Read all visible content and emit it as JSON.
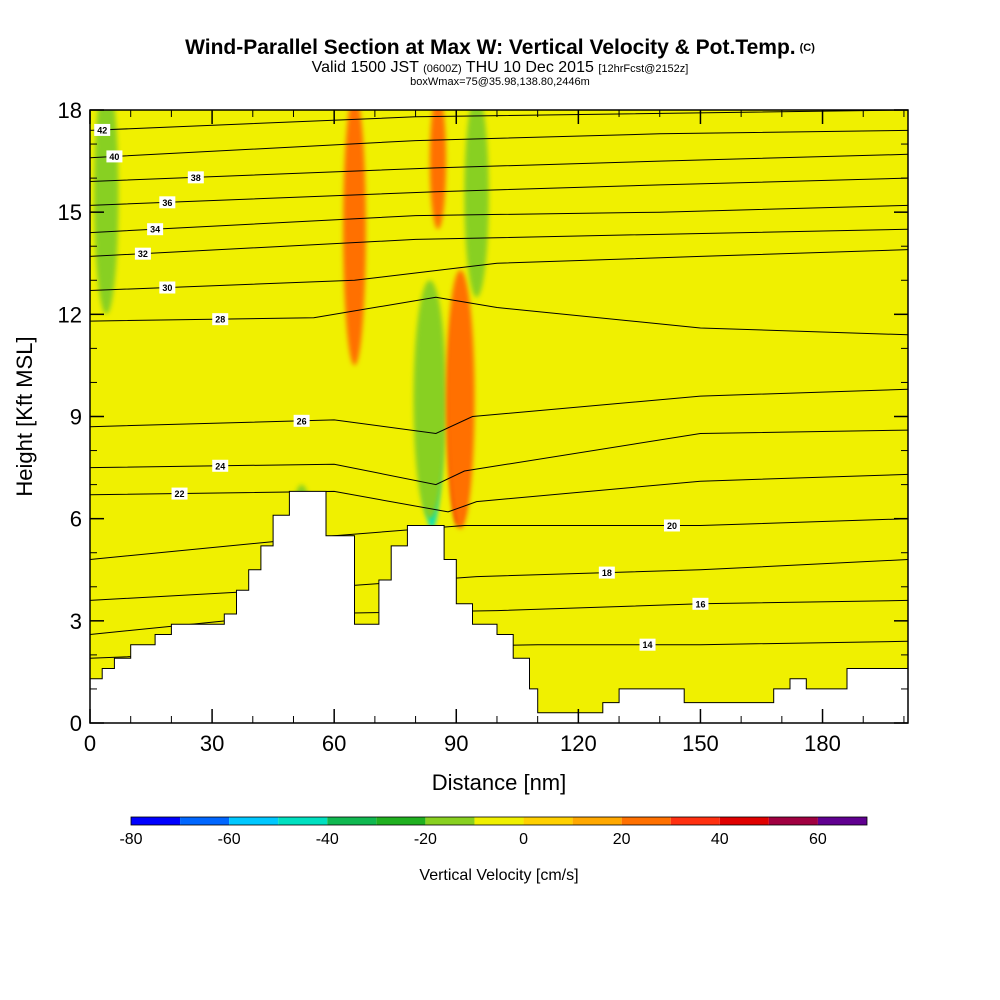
{
  "title": {
    "main": "Wind-Parallel Section at Max W: Vertical Velocity & Pot.Temp.",
    "copyright": "(C)",
    "valid_prefix": "Valid 1500 JST",
    "valid_z": "(0600Z)",
    "valid_date": "THU 10 Dec 2015",
    "forecast": "[12hrFcst@2152z]",
    "box_info": "boxWmax=75@35.98,138.80,2446m"
  },
  "chart_data": {
    "type": "heatmap",
    "xlabel": "Distance [nm]",
    "ylabel": "Height [Kft MSL]",
    "xlim": [
      0,
      201
    ],
    "ylim": [
      0,
      18
    ],
    "xticks": [
      0,
      30,
      60,
      90,
      120,
      150,
      180
    ],
    "yticks": [
      0,
      3,
      6,
      9,
      12,
      15,
      18
    ],
    "background_field_color": "#f0f000",
    "terrain": [
      [
        0,
        1.3
      ],
      [
        3,
        1.3
      ],
      [
        3,
        1.6
      ],
      [
        6,
        1.6
      ],
      [
        6,
        1.9
      ],
      [
        10,
        1.9
      ],
      [
        10,
        2.3
      ],
      [
        16,
        2.3
      ],
      [
        16,
        2.6
      ],
      [
        20,
        2.6
      ],
      [
        20,
        2.9
      ],
      [
        33,
        2.9
      ],
      [
        33,
        3.2
      ],
      [
        36,
        3.2
      ],
      [
        36,
        3.9
      ],
      [
        39,
        3.9
      ],
      [
        39,
        4.5
      ],
      [
        42,
        4.5
      ],
      [
        42,
        5.2
      ],
      [
        45,
        5.2
      ],
      [
        45,
        6.1
      ],
      [
        49,
        6.1
      ],
      [
        49,
        6.8
      ],
      [
        58,
        6.8
      ],
      [
        58,
        5.5
      ],
      [
        65,
        5.5
      ],
      [
        65,
        2.9
      ],
      [
        71,
        2.9
      ],
      [
        71,
        4.2
      ],
      [
        74,
        4.2
      ],
      [
        74,
        5.2
      ],
      [
        78,
        5.2
      ],
      [
        78,
        5.8
      ],
      [
        87,
        5.8
      ],
      [
        87,
        4.8
      ],
      [
        90,
        4.8
      ],
      [
        90,
        3.5
      ],
      [
        94,
        3.5
      ],
      [
        94,
        2.9
      ],
      [
        100,
        2.9
      ],
      [
        100,
        2.6
      ],
      [
        104,
        2.6
      ],
      [
        104,
        1.9
      ],
      [
        108,
        1.9
      ],
      [
        108,
        1.0
      ],
      [
        110,
        1.0
      ],
      [
        110,
        0.3
      ],
      [
        126,
        0.3
      ],
      [
        126,
        0.6
      ],
      [
        130,
        0.6
      ],
      [
        130,
        1.0
      ],
      [
        146,
        1.0
      ],
      [
        146,
        0.6
      ],
      [
        168,
        0.6
      ],
      [
        168,
        1.0
      ],
      [
        172,
        1.0
      ],
      [
        172,
        1.3
      ],
      [
        176,
        1.3
      ],
      [
        176,
        1.0
      ],
      [
        186,
        1.0
      ],
      [
        186,
        1.6
      ],
      [
        201,
        1.6
      ],
      [
        201,
        0
      ],
      [
        0,
        0
      ]
    ],
    "velocity_features": [
      {
        "x": 84,
        "y": 8.5,
        "rx": 2.4,
        "ry": 2.8,
        "w": -45
      },
      {
        "x": 83.5,
        "y": 9.5,
        "rx": 4,
        "ry": 3.5,
        "w": -20
      },
      {
        "x": 90.5,
        "y": 9.0,
        "rx": 2.2,
        "ry": 3.2,
        "w": 40
      },
      {
        "x": 91,
        "y": 9.5,
        "rx": 3.5,
        "ry": 3.8,
        "w": 25
      },
      {
        "x": 65,
        "y": 14.5,
        "rx": 2.8,
        "ry": 4,
        "w": 25
      },
      {
        "x": 85.5,
        "y": 16.5,
        "rx": 2,
        "ry": 2,
        "w": 25
      },
      {
        "x": 95,
        "y": 15.5,
        "rx": 3,
        "ry": 3,
        "w": -15
      },
      {
        "x": 4,
        "y": 15.5,
        "rx": 3,
        "ry": 3.5,
        "w": -15
      },
      {
        "x": 52,
        "y": 5.0,
        "rx": 3,
        "ry": 2,
        "w": -15
      }
    ],
    "theta_contours": [
      {
        "label": "14",
        "label_x": 137,
        "label_y": 2.2,
        "points": [
          [
            0,
            1.9
          ],
          [
            60,
            2.2
          ],
          [
            110,
            2.3
          ],
          [
            150,
            2.3
          ],
          [
            201,
            2.4
          ]
        ]
      },
      {
        "label": "16",
        "label_x": 150,
        "label_y": 3.5,
        "points": [
          [
            0,
            2.6
          ],
          [
            50,
            3.2
          ],
          [
            100,
            3.3
          ],
          [
            150,
            3.5
          ],
          [
            201,
            3.6
          ]
        ]
      },
      {
        "label": "18",
        "label_x": 127,
        "label_y": 4.4,
        "points": [
          [
            0,
            3.6
          ],
          [
            60,
            4.0
          ],
          [
            95,
            4.3
          ],
          [
            150,
            4.5
          ],
          [
            201,
            4.8
          ]
        ]
      },
      {
        "label": "20",
        "label_x": 143,
        "label_y": 5.8,
        "points": [
          [
            0,
            4.8
          ],
          [
            60,
            5.5
          ],
          [
            92,
            5.8
          ],
          [
            150,
            5.8
          ],
          [
            201,
            6.0
          ]
        ]
      },
      {
        "label": "22",
        "label_x": 22,
        "label_y": 6.9,
        "points": [
          [
            0,
            6.7
          ],
          [
            60,
            6.8
          ],
          [
            88,
            6.2
          ],
          [
            95,
            6.5
          ],
          [
            150,
            7.1
          ],
          [
            201,
            7.3
          ]
        ]
      },
      {
        "label": "24",
        "label_x": 32,
        "label_y": 7.7,
        "points": [
          [
            0,
            7.5
          ],
          [
            60,
            7.6
          ],
          [
            85,
            7.0
          ],
          [
            92,
            7.4
          ],
          [
            150,
            8.5
          ],
          [
            201,
            8.6
          ]
        ]
      },
      {
        "label": "26",
        "label_x": 52,
        "label_y": 8.9,
        "points": [
          [
            0,
            8.7
          ],
          [
            60,
            8.9
          ],
          [
            85,
            8.5
          ],
          [
            94,
            9.0
          ],
          [
            150,
            9.6
          ],
          [
            201,
            9.8
          ]
        ]
      },
      {
        "label": "28",
        "label_x": 32,
        "label_y": 11.9,
        "points": [
          [
            0,
            11.8
          ],
          [
            55,
            11.9
          ],
          [
            85,
            12.5
          ],
          [
            100,
            12.2
          ],
          [
            150,
            11.6
          ],
          [
            201,
            11.4
          ]
        ]
      },
      {
        "label": "30",
        "label_x": 19,
        "label_y": 12.7,
        "points": [
          [
            0,
            12.7
          ],
          [
            65,
            13.0
          ],
          [
            100,
            13.5
          ],
          [
            150,
            13.7
          ],
          [
            201,
            13.9
          ]
        ]
      },
      {
        "label": "32",
        "label_x": 13,
        "label_y": 13.7,
        "points": [
          [
            0,
            13.7
          ],
          [
            80,
            14.2
          ],
          [
            120,
            14.3
          ],
          [
            201,
            14.5
          ]
        ]
      },
      {
        "label": "34",
        "label_x": 16,
        "label_y": 14.4,
        "points": [
          [
            0,
            14.4
          ],
          [
            80,
            14.9
          ],
          [
            140,
            15.0
          ],
          [
            201,
            15.2
          ]
        ]
      },
      {
        "label": "36",
        "label_x": 19,
        "label_y": 15.2,
        "points": [
          [
            0,
            15.2
          ],
          [
            85,
            15.6
          ],
          [
            140,
            15.8
          ],
          [
            201,
            16.0
          ]
        ]
      },
      {
        "label": "38",
        "label_x": 26,
        "label_y": 15.9,
        "points": [
          [
            0,
            15.9
          ],
          [
            85,
            16.3
          ],
          [
            140,
            16.5
          ],
          [
            201,
            16.7
          ]
        ]
      },
      {
        "label": "40",
        "label_x": 6,
        "label_y": 16.6,
        "points": [
          [
            0,
            16.6
          ],
          [
            80,
            17.1
          ],
          [
            140,
            17.3
          ],
          [
            201,
            17.4
          ]
        ]
      },
      {
        "label": "42",
        "label_x": 3,
        "label_y": 17.4,
        "points": [
          [
            0,
            17.4
          ],
          [
            80,
            17.8
          ],
          [
            201,
            18.0
          ]
        ]
      }
    ],
    "colorbar": {
      "label": "Vertical Velocity [cm/s]",
      "bounds": [
        -80,
        -70,
        -60,
        -50,
        -40,
        -30,
        -20,
        -10,
        0,
        10,
        20,
        30,
        40,
        50,
        60,
        70
      ],
      "colors": [
        "#0000ff",
        "#0066ff",
        "#00c8ff",
        "#00e0c0",
        "#10b850",
        "#20b020",
        "#88d020",
        "#f0f000",
        "#ffd000",
        "#ffa800",
        "#ff7000",
        "#ff3010",
        "#e00000",
        "#a00040",
        "#600090"
      ],
      "ticks": [
        -80,
        -60,
        -40,
        -20,
        0,
        20,
        40,
        60
      ]
    }
  }
}
